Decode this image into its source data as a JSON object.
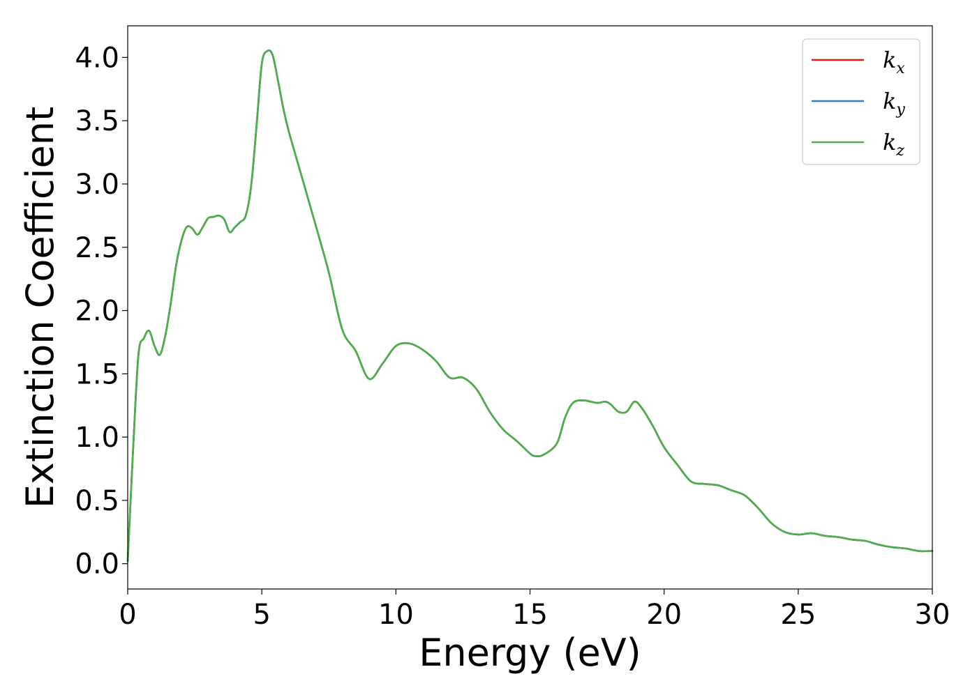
{
  "chart_data": {
    "type": "line",
    "xlabel": "Energy (eV)",
    "ylabel": "Extinction Coefficient",
    "xlim": [
      0,
      30
    ],
    "ylim": [
      -0.2,
      4.25
    ],
    "xticks": [
      "0",
      "5",
      "10",
      "15",
      "20",
      "25",
      "30"
    ],
    "yticks": [
      "0.0",
      "0.5",
      "1.0",
      "1.5",
      "2.0",
      "2.5",
      "3.0",
      "3.5",
      "4.0"
    ],
    "grid": false,
    "legend_position": "top-right",
    "x": [
      0,
      0.2,
      0.4,
      0.6,
      0.8,
      1.0,
      1.2,
      1.4,
      1.6,
      1.8,
      2.0,
      2.2,
      2.4,
      2.6,
      2.8,
      3.0,
      3.2,
      3.4,
      3.6,
      3.8,
      4.0,
      4.2,
      4.4,
      4.6,
      4.8,
      5.0,
      5.2,
      5.4,
      5.6,
      5.8,
      6.0,
      6.5,
      7.0,
      7.5,
      8.0,
      8.5,
      9.0,
      9.5,
      10.0,
      10.5,
      11.0,
      11.5,
      12.0,
      12.5,
      13.0,
      13.5,
      14.0,
      14.5,
      15.0,
      15.2,
      15.5,
      16.0,
      16.3,
      16.6,
      17.0,
      17.5,
      17.8,
      18.0,
      18.3,
      18.6,
      18.9,
      19.2,
      19.6,
      20.0,
      20.5,
      21.0,
      21.5,
      22.0,
      22.5,
      23.0,
      23.5,
      24.0,
      24.5,
      25.0,
      25.5,
      26.0,
      26.5,
      27.0,
      27.5,
      28.0,
      28.5,
      29.0,
      29.5,
      30.0
    ],
    "series": [
      {
        "name": "k",
        "subscript": "x",
        "color": "#e41a1c",
        "values": [
          0.02,
          0.9,
          1.65,
          1.78,
          1.84,
          1.72,
          1.65,
          1.8,
          2.05,
          2.35,
          2.55,
          2.66,
          2.65,
          2.6,
          2.66,
          2.73,
          2.74,
          2.75,
          2.72,
          2.62,
          2.66,
          2.7,
          2.75,
          2.98,
          3.45,
          3.95,
          4.05,
          4.02,
          3.82,
          3.6,
          3.42,
          3.05,
          2.68,
          2.3,
          1.85,
          1.68,
          1.46,
          1.58,
          1.72,
          1.74,
          1.69,
          1.6,
          1.47,
          1.47,
          1.38,
          1.2,
          1.06,
          0.97,
          0.87,
          0.85,
          0.86,
          0.95,
          1.15,
          1.27,
          1.29,
          1.27,
          1.28,
          1.26,
          1.2,
          1.2,
          1.28,
          1.22,
          1.08,
          0.92,
          0.78,
          0.65,
          0.63,
          0.62,
          0.58,
          0.54,
          0.44,
          0.32,
          0.25,
          0.23,
          0.24,
          0.22,
          0.21,
          0.19,
          0.18,
          0.15,
          0.13,
          0.12,
          0.1,
          0.1
        ]
      },
      {
        "name": "k",
        "subscript": "y",
        "color": "#377eb8",
        "values": [
          0.02,
          0.9,
          1.65,
          1.78,
          1.84,
          1.72,
          1.65,
          1.8,
          2.05,
          2.35,
          2.55,
          2.66,
          2.65,
          2.6,
          2.66,
          2.73,
          2.74,
          2.75,
          2.72,
          2.62,
          2.66,
          2.7,
          2.75,
          2.98,
          3.45,
          3.95,
          4.05,
          4.02,
          3.82,
          3.6,
          3.42,
          3.05,
          2.68,
          2.3,
          1.85,
          1.68,
          1.46,
          1.58,
          1.72,
          1.74,
          1.69,
          1.6,
          1.47,
          1.47,
          1.38,
          1.2,
          1.06,
          0.97,
          0.87,
          0.85,
          0.86,
          0.95,
          1.15,
          1.27,
          1.29,
          1.27,
          1.28,
          1.26,
          1.2,
          1.2,
          1.28,
          1.22,
          1.08,
          0.92,
          0.78,
          0.65,
          0.63,
          0.62,
          0.58,
          0.54,
          0.44,
          0.32,
          0.25,
          0.23,
          0.24,
          0.22,
          0.21,
          0.19,
          0.18,
          0.15,
          0.13,
          0.12,
          0.1,
          0.1
        ]
      },
      {
        "name": "k",
        "subscript": "z",
        "color": "#4daf4a",
        "values": [
          0.02,
          0.9,
          1.65,
          1.78,
          1.84,
          1.72,
          1.65,
          1.8,
          2.05,
          2.35,
          2.55,
          2.66,
          2.65,
          2.6,
          2.66,
          2.73,
          2.74,
          2.75,
          2.72,
          2.62,
          2.66,
          2.7,
          2.75,
          2.98,
          3.45,
          3.95,
          4.05,
          4.02,
          3.82,
          3.6,
          3.42,
          3.05,
          2.68,
          2.3,
          1.85,
          1.68,
          1.46,
          1.58,
          1.72,
          1.74,
          1.69,
          1.6,
          1.47,
          1.47,
          1.38,
          1.2,
          1.06,
          0.97,
          0.87,
          0.85,
          0.86,
          0.95,
          1.15,
          1.27,
          1.29,
          1.27,
          1.28,
          1.26,
          1.2,
          1.2,
          1.28,
          1.22,
          1.08,
          0.92,
          0.78,
          0.65,
          0.63,
          0.62,
          0.58,
          0.54,
          0.44,
          0.32,
          0.25,
          0.23,
          0.24,
          0.22,
          0.21,
          0.19,
          0.18,
          0.15,
          0.13,
          0.12,
          0.1,
          0.1
        ]
      }
    ]
  }
}
